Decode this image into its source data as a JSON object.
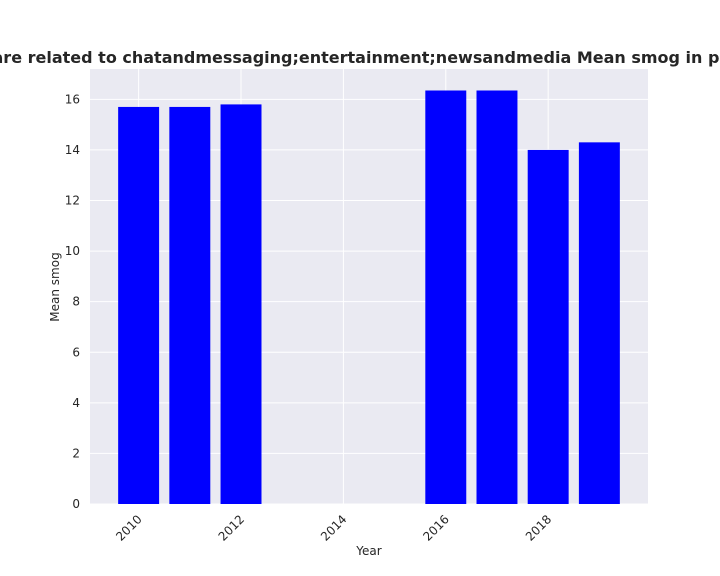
{
  "chart_data": {
    "type": "bar",
    "title": "Categories are related to chatandmessaging;entertainment;newsandmedia Mean smog in privacy policies",
    "xlabel": "Year",
    "ylabel": "Mean smog",
    "x": [
      2010,
      2011,
      2012,
      2016,
      2017,
      2018,
      2019
    ],
    "values": [
      15.7,
      15.7,
      15.8,
      16.35,
      16.35,
      14.0,
      14.3
    ],
    "xlim": [
      2009.05,
      2019.95
    ],
    "ylim": [
      0,
      17.2
    ],
    "xticks": [
      2010,
      2012,
      2014,
      2016,
      2018
    ],
    "yticks": [
      0,
      2,
      4,
      6,
      8,
      10,
      12,
      14,
      16
    ],
    "grid": true,
    "bar_color": "#0000ff",
    "background_color": "#eaeaf2",
    "grid_color": "#ffffff"
  }
}
